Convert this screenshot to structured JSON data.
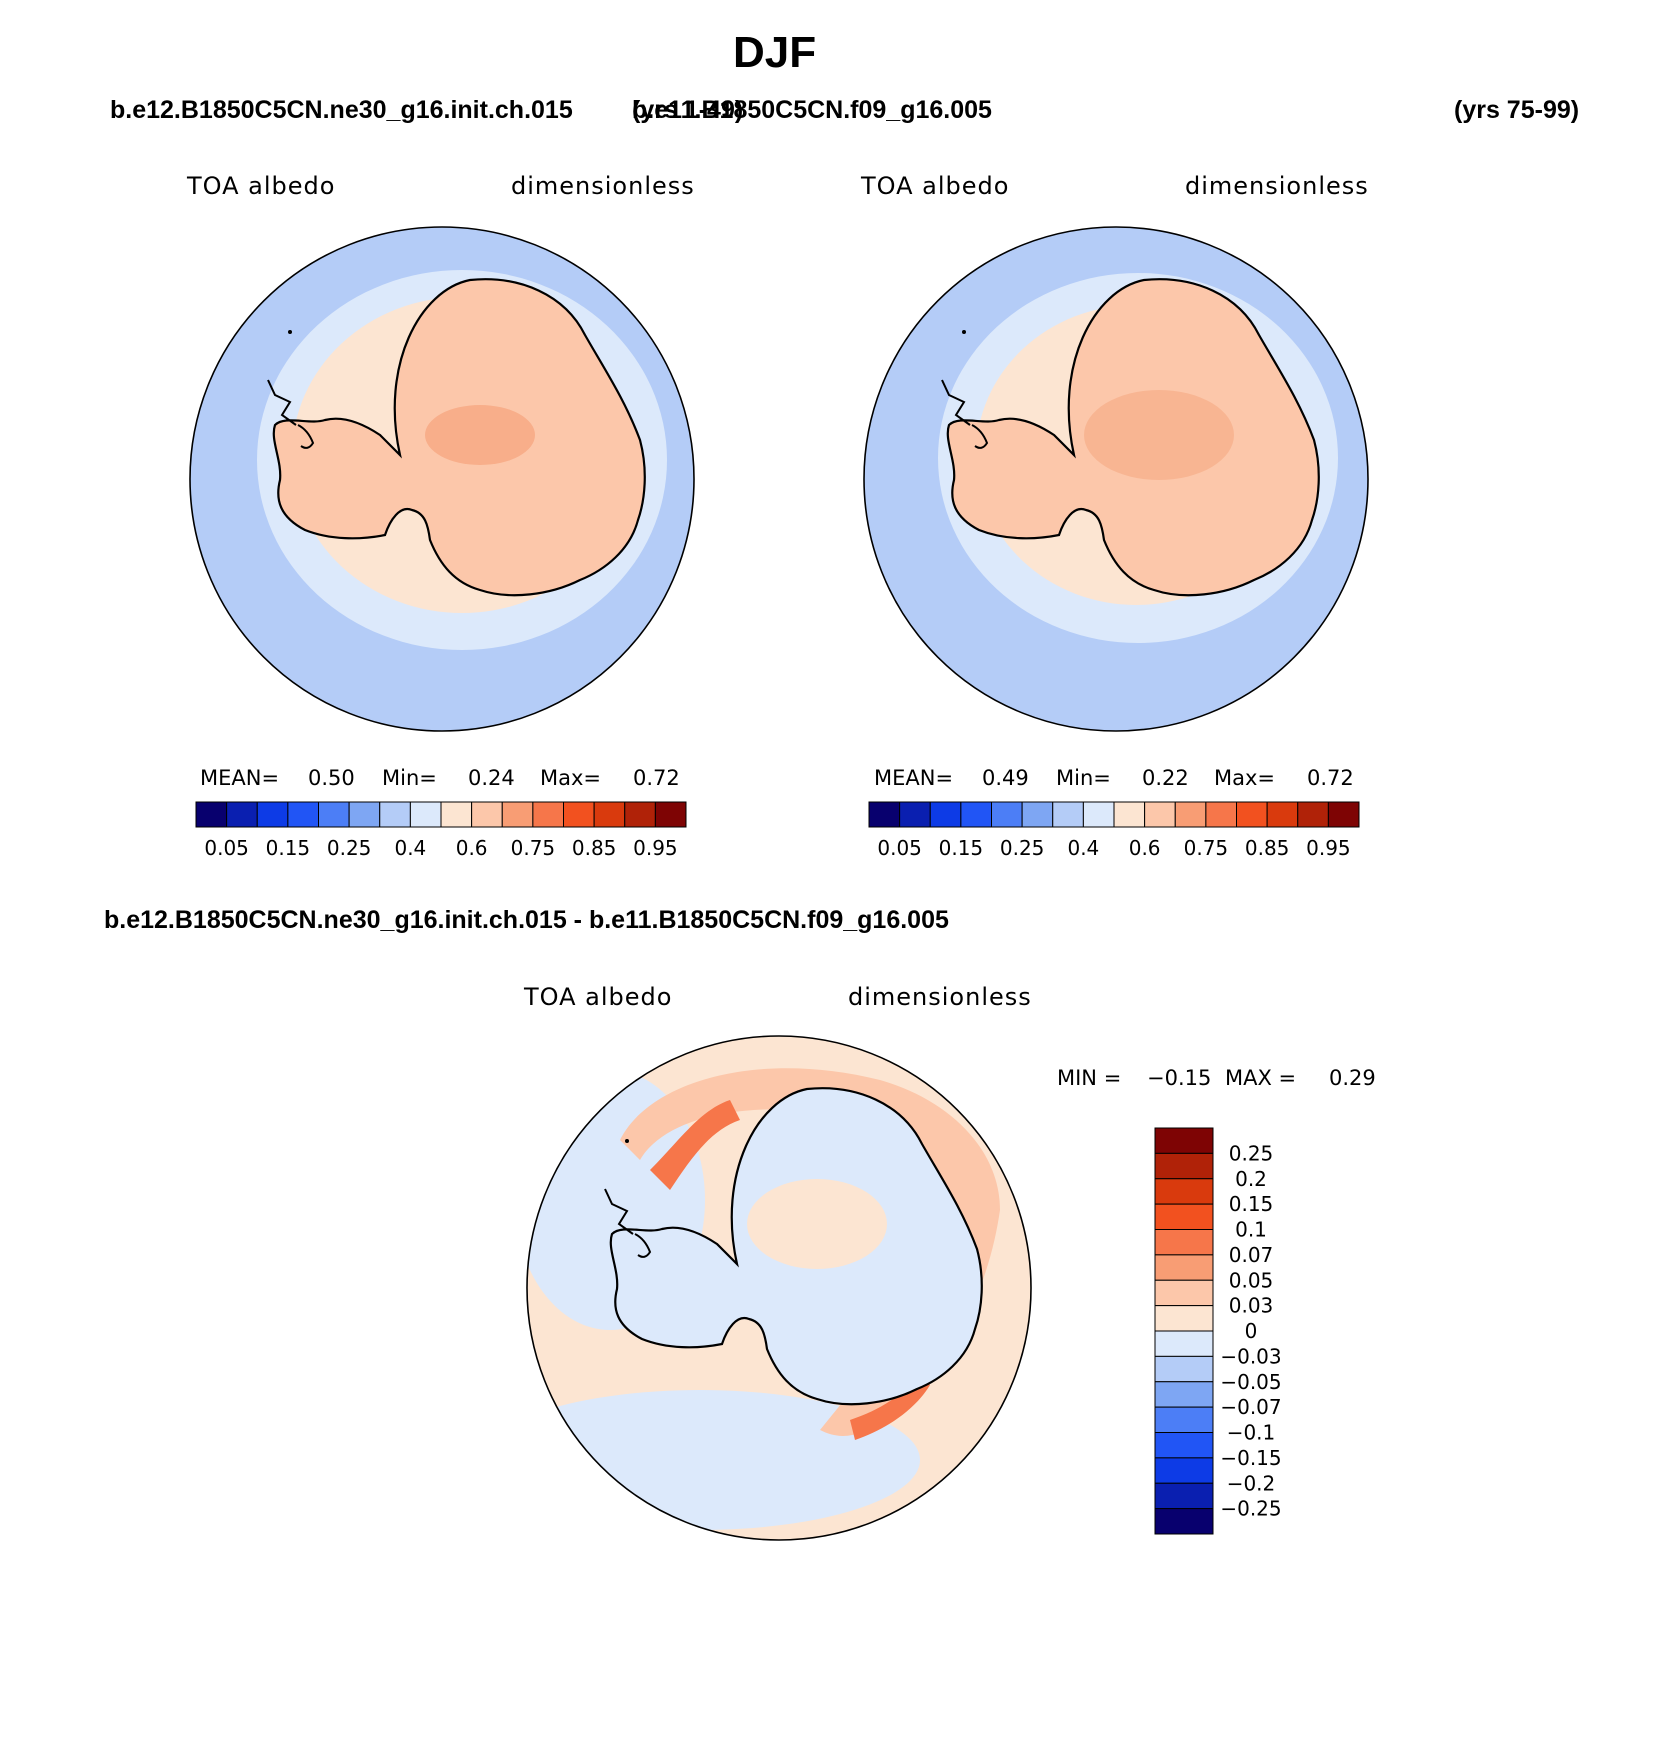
{
  "title": "DJF",
  "panels": [
    {
      "case": "b.e12.B1850C5CN.ne30_g16.init.ch.015",
      "years": "(yrs 1-49)",
      "field": "TOA albedo",
      "units": "dimensionless",
      "stats": {
        "mean_label": "MEAN=",
        "mean": "0.50",
        "min_label": "Min=",
        "min": "0.24",
        "max_label": "Max=",
        "max": "0.72"
      }
    },
    {
      "case": "b.e11.B1850C5CN.f09_g16.005",
      "years": "(yrs 75-99)",
      "field": "TOA albedo",
      "units": "dimensionless",
      "stats": {
        "mean_label": "MEAN=",
        "mean": "0.49",
        "min_label": "Min=",
        "min": "0.22",
        "max_label": "Max=",
        "max": "0.72"
      }
    }
  ],
  "colorbar_top": {
    "colors": [
      "#08006e",
      "#0a1fb0",
      "#0d3be6",
      "#2155f5",
      "#4c7ef6",
      "#7ea6f3",
      "#b4ccf7",
      "#dce9fb",
      "#fce5d2",
      "#fcc7aa",
      "#f89d74",
      "#f6764a",
      "#f2511f",
      "#d93a0d",
      "#b02208",
      "#7e0404"
    ],
    "tick_labels": [
      "0.05",
      "0.15",
      "0.25",
      "0.4",
      "0.6",
      "0.75",
      "0.85",
      "0.95"
    ]
  },
  "diff": {
    "case": "b.e12.B1850C5CN.ne30_g16.init.ch.015 - b.e11.B1850C5CN.f09_g16.005",
    "field": "TOA albedo",
    "units": "dimensionless",
    "min_label": "MIN =",
    "min": "−0.15",
    "max_label": "MAX =",
    "max": "0.29"
  },
  "colorbar_diff": {
    "colors": [
      "#7e0404",
      "#b02208",
      "#d93a0d",
      "#f2511f",
      "#f6764a",
      "#f89d74",
      "#fcc7aa",
      "#fce5d2",
      "#dce9fb",
      "#b4ccf7",
      "#7ea6f3",
      "#4c7ef6",
      "#2155f5",
      "#0d3be6",
      "#0a1fb0",
      "#08006e"
    ],
    "tick_labels": [
      "0.25",
      "0.2",
      "0.15",
      "0.1",
      "0.07",
      "0.05",
      "0.03",
      "0",
      "−0.03",
      "−0.05",
      "−0.07",
      "−0.1",
      "−0.15",
      "−0.2",
      "−0.25"
    ]
  }
}
